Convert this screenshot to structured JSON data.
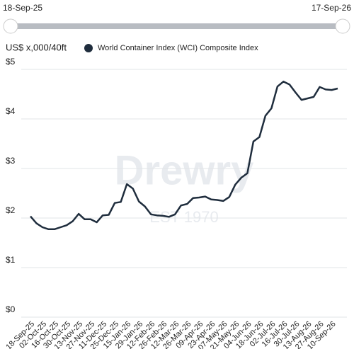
{
  "slider": {
    "start": "18-Sep-25",
    "end": "17-Sep-26"
  },
  "chart_data": {
    "type": "line",
    "y_label": "US$ x,000/40ft",
    "watermark": {
      "brand": "Drewry",
      "est": "EST 1970"
    },
    "categories": [
      "18-Sep-25",
      null,
      "02-Oct-25",
      null,
      "16-Oct-25",
      null,
      "30-Oct-25",
      null,
      "13-Nov-25",
      null,
      "27-Nov-25",
      null,
      "11-Dec-25",
      null,
      "25-Dec-25",
      null,
      "15-Jan-26",
      null,
      "29-Jan-26",
      null,
      "12-Feb-26",
      null,
      "26-Feb-26",
      null,
      "12-Mar-26",
      null,
      "26-Mar-26",
      null,
      "09-Apr-26",
      null,
      "23-Apr-26",
      null,
      "07-May-26",
      null,
      "21-May-26",
      null,
      "04-Jun-26",
      null,
      "18-Jun-26",
      null,
      "02-Jul-26",
      null,
      "16-Jul-26",
      null,
      "30-Jul-26",
      null,
      "13-Aug-26",
      null,
      "27-Aug-26",
      null,
      "10-Sep-26",
      null
    ],
    "series": [
      {
        "name": "World Container Index (WCI) Composite Index",
        "color": "#1f2d3d",
        "values": [
          1.92,
          1.78,
          1.7,
          1.66,
          1.66,
          1.7,
          1.74,
          1.82,
          1.97,
          1.86,
          1.86,
          1.8,
          1.94,
          1.95,
          2.19,
          2.21,
          2.57,
          2.48,
          2.22,
          2.12,
          1.96,
          1.94,
          1.93,
          1.91,
          1.96,
          2.14,
          2.17,
          2.29,
          2.3,
          2.32,
          2.26,
          2.25,
          2.23,
          2.31,
          2.56,
          2.7,
          2.79,
          3.43,
          3.52,
          3.95,
          4.1,
          4.54,
          4.64,
          4.58,
          4.42,
          4.27,
          4.3,
          4.33,
          4.53,
          4.48,
          4.47,
          4.5
        ]
      }
    ],
    "ylim": [
      0,
      5
    ],
    "yticks": [
      {
        "value": 0,
        "label": "$0"
      },
      {
        "value": 1,
        "label": "$1"
      },
      {
        "value": 2,
        "label": "$2"
      },
      {
        "value": 3,
        "label": "$3"
      },
      {
        "value": 4,
        "label": "$4"
      },
      {
        "value": 5,
        "label": "$5"
      }
    ],
    "grid": true
  }
}
